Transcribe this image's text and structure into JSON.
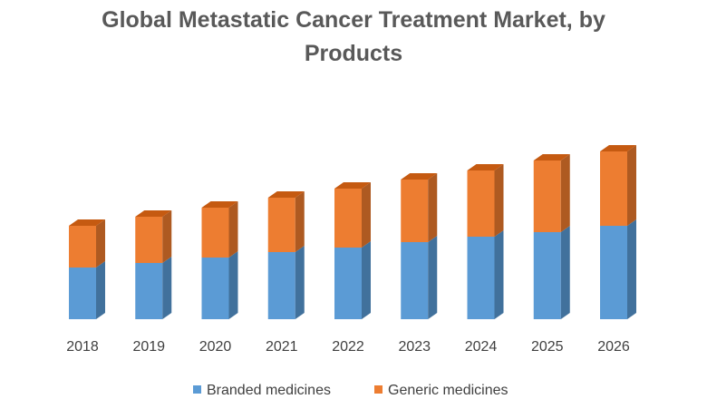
{
  "chart_data": {
    "type": "bar",
    "stacked": true,
    "style": "3d-column",
    "title": "Global Metastatic Cancer Treatment Market, by Products",
    "title_lines": [
      "Global Metastatic Cancer Treatment Market, by",
      "Products"
    ],
    "categories": [
      "2018",
      "2019",
      "2020",
      "2021",
      "2022",
      "2023",
      "2024",
      "2025",
      "2026"
    ],
    "series": [
      {
        "name": "Branded medicines",
        "color": "#5B9BD5",
        "values": [
          57,
          62,
          68,
          74,
          79,
          85,
          91,
          96,
          103
        ]
      },
      {
        "name": "Generic medicines",
        "color": "#ED7D31",
        "values": [
          46,
          51,
          55,
          60,
          65,
          69,
          73,
          79,
          82
        ]
      }
    ],
    "value_axis_shown": false,
    "grid": false,
    "legend_position": "bottom",
    "xlabel": "",
    "ylabel": ""
  }
}
